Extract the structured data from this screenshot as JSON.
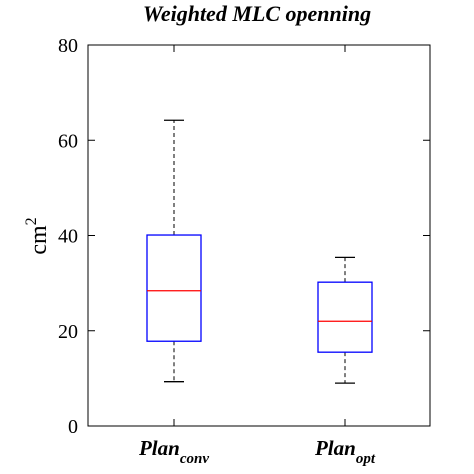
{
  "chart_data": {
    "type": "box",
    "title": "Weighted MLC openning",
    "ylabel": {
      "base": "cm",
      "superscript": "2"
    },
    "ylim": [
      0,
      80
    ],
    "yticks": [
      0,
      20,
      40,
      60,
      80
    ],
    "grid": false,
    "categories": [
      {
        "main": "Plan",
        "sub": "conv"
      },
      {
        "main": "Plan",
        "sub": "opt"
      }
    ],
    "boxes": [
      {
        "whisker_low": 9.3,
        "q1": 17.8,
        "median": 28.4,
        "q3": 40.1,
        "whisker_high": 64.2
      },
      {
        "whisker_low": 9.0,
        "q1": 15.5,
        "median": 22.0,
        "q3": 30.2,
        "whisker_high": 35.4
      }
    ],
    "colors": {
      "box": "#0000ff",
      "median": "#ff0000",
      "whisker": "#000000",
      "axes": "#000000"
    }
  }
}
